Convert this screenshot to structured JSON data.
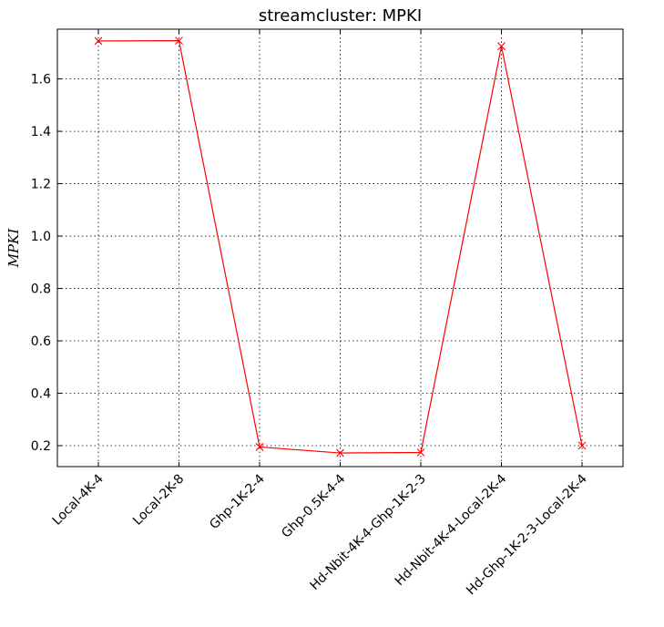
{
  "chart_data": {
    "type": "line",
    "title": "streamcluster: MPKI",
    "ylabel": "MPKI",
    "xlabel": "",
    "categories": [
      "Local-4K-4",
      "Local-2K-8",
      "Ghp-1K-2-4",
      "Ghp-0.5K-4-4",
      "Hd-Nbit-4K-4-Ghp-1K-2-3",
      "Hd-Nbit-4K-4-Local-2K-4",
      "Hd-Ghp-1K-2-3-Local-2K-4"
    ],
    "series": [
      {
        "values": [
          1.745,
          1.746,
          0.195,
          0.172,
          0.174,
          1.725,
          0.2
        ],
        "color": "#ff0000",
        "marker": "x"
      }
    ],
    "ylim": [
      0.12,
      1.79
    ],
    "yticks": [
      0.2,
      0.4,
      0.6,
      0.8,
      1.0,
      1.2,
      1.4,
      1.6
    ],
    "ytick_labels": [
      "0.2",
      "0.4",
      "0.6",
      "0.8",
      "1.0",
      "1.2",
      "1.4",
      "1.6"
    ],
    "grid": true,
    "legend": "none"
  }
}
